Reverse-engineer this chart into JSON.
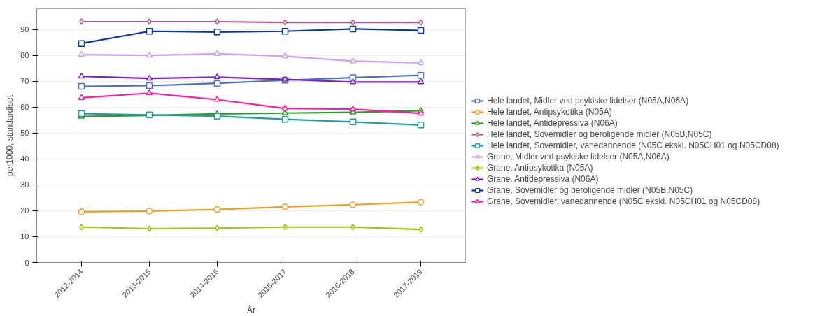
{
  "chart_data": {
    "type": "line",
    "xlabel": "År",
    "ylabel": "per1000, standardiset",
    "categories": [
      "2012-2014",
      "2013-2015",
      "2014-2016",
      "2015-2017",
      "2016-2018",
      "2017-2019"
    ],
    "ylim": [
      0,
      98
    ],
    "yticks": [
      0,
      10,
      20,
      30,
      40,
      50,
      60,
      70,
      80,
      90
    ],
    "grid": "y",
    "legend": "right",
    "line_style": "solid",
    "series": [
      {
        "name": "Hele landet, Midler ved psykiske lidelser (N05A,N06A)",
        "color": "#4a6fc9",
        "marker": "square",
        "values": [
          68.0,
          68.3,
          69.2,
          70.4,
          71.4,
          72.3
        ]
      },
      {
        "name": "Hele landet, Antipsykotika (N05A)",
        "color": "#f0a020",
        "marker": "circle",
        "values": [
          19.6,
          19.9,
          20.5,
          21.5,
          22.3,
          23.3
        ]
      },
      {
        "name": "Hele landet, Antidepressiva (N06A)",
        "color": "#22a022",
        "marker": "triangle",
        "values": [
          56.4,
          56.8,
          57.4,
          57.7,
          58.0,
          58.6
        ]
      },
      {
        "name": "Hele landet, Sovemidler og beroligende midler (N05B,N05C)",
        "color": "#b05a8a",
        "marker": "diamond",
        "values": [
          93.0,
          93.0,
          93.0,
          92.7,
          92.7,
          92.7
        ]
      },
      {
        "name": "Hele landet, Sovemidler, vanedannende (N05C ekskl. N05CH01 og N05CD08)",
        "color": "#1aa0a0",
        "marker": "square",
        "values": [
          57.5,
          57.0,
          56.5,
          55.3,
          54.3,
          53.1
        ]
      },
      {
        "name": "Grane, Midler ved psykiske lidelser (N05A,N06A)",
        "color": "#c8a0ff",
        "marker": "triangle",
        "values": [
          80.3,
          80.0,
          80.6,
          79.7,
          77.8,
          77.1
        ]
      },
      {
        "name": "Grane, Antipsykotika (N05A)",
        "color": "#99cc00",
        "marker": "diamond",
        "values": [
          13.7,
          13.1,
          13.3,
          13.7,
          13.7,
          12.8
        ]
      },
      {
        "name": "Grane, Antidepressiva (N06A)",
        "color": "#7a1fd6",
        "marker": "triangle",
        "values": [
          71.9,
          71.1,
          71.6,
          70.7,
          69.7,
          69.7
        ]
      },
      {
        "name": "Grane, Sovemidler og beroligende midler (N05B,N05C)",
        "color": "#0a35a6",
        "marker": "square",
        "values": [
          84.6,
          89.3,
          89.0,
          89.3,
          90.2,
          89.6
        ]
      },
      {
        "name": "Grane, Sovemidler, vanedannende (N05C ekskl. N05CH01 og N05CD08)",
        "color": "#ff1aa0",
        "marker": "triangle",
        "values": [
          63.6,
          65.4,
          62.9,
          59.5,
          59.2,
          57.6
        ]
      }
    ]
  }
}
